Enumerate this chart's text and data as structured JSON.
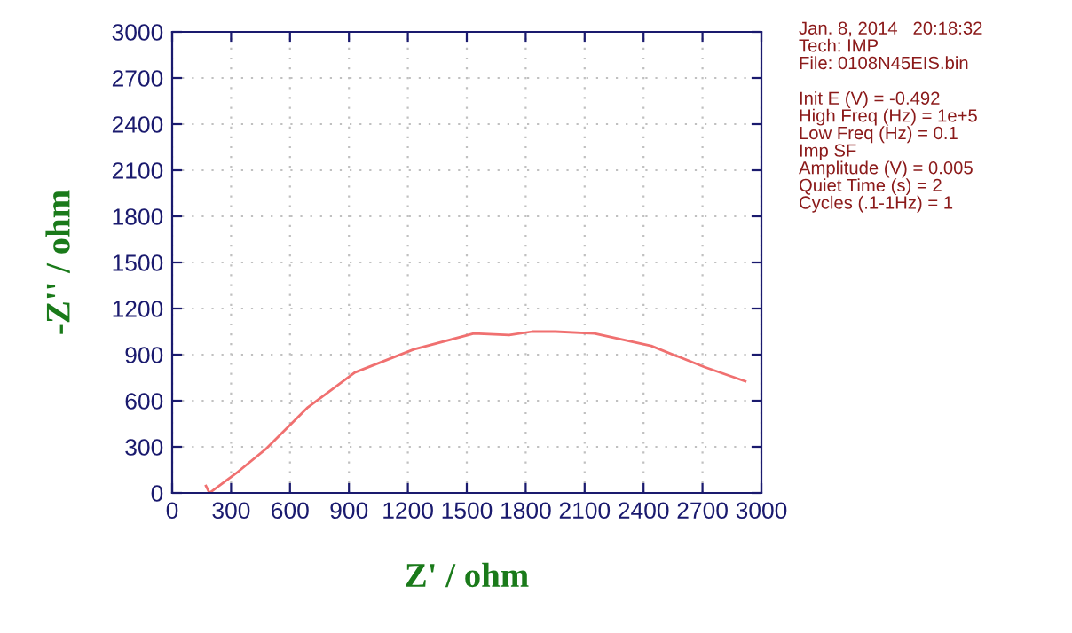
{
  "chart_data": {
    "type": "line",
    "xlabel": "Z' / ohm",
    "ylabel": "-Z'' / ohm",
    "x": [
      172,
      190,
      325,
      479,
      687,
      930,
      1229,
      1536,
      1716,
      1834,
      1951,
      2150,
      2439,
      2710,
      2918
    ],
    "series": [
      {
        "color": "#f07070",
        "values": [
          46,
          0,
          127,
          288,
          553,
          784,
          934,
          1038,
          1027,
          1050,
          1050,
          1038,
          957,
          819,
          727
        ]
      }
    ],
    "xlim": [
      0,
      3000
    ],
    "ylim": [
      0,
      3000
    ],
    "xticks": [
      0,
      300,
      600,
      900,
      1200,
      1500,
      1800,
      2100,
      2400,
      2700,
      3000
    ],
    "yticks": [
      0,
      300,
      600,
      900,
      1200,
      1500,
      1800,
      2100,
      2400,
      2700,
      3000
    ],
    "grid": true,
    "marker": "none",
    "line_style": "solid",
    "annotations": [
      "Jan. 8, 2014   20:18:32\nTech: IMP\nFile: 0108N45EIS.bin",
      "Init E (V) = -0.492\nHigh Freq (Hz) = 1e+5\nLow Freq (Hz) = 0.1\nImp SF\nAmplitude (V) = 0.005\nQuiet Time (s) = 2\nCycles (.1-1Hz) = 1"
    ]
  }
}
